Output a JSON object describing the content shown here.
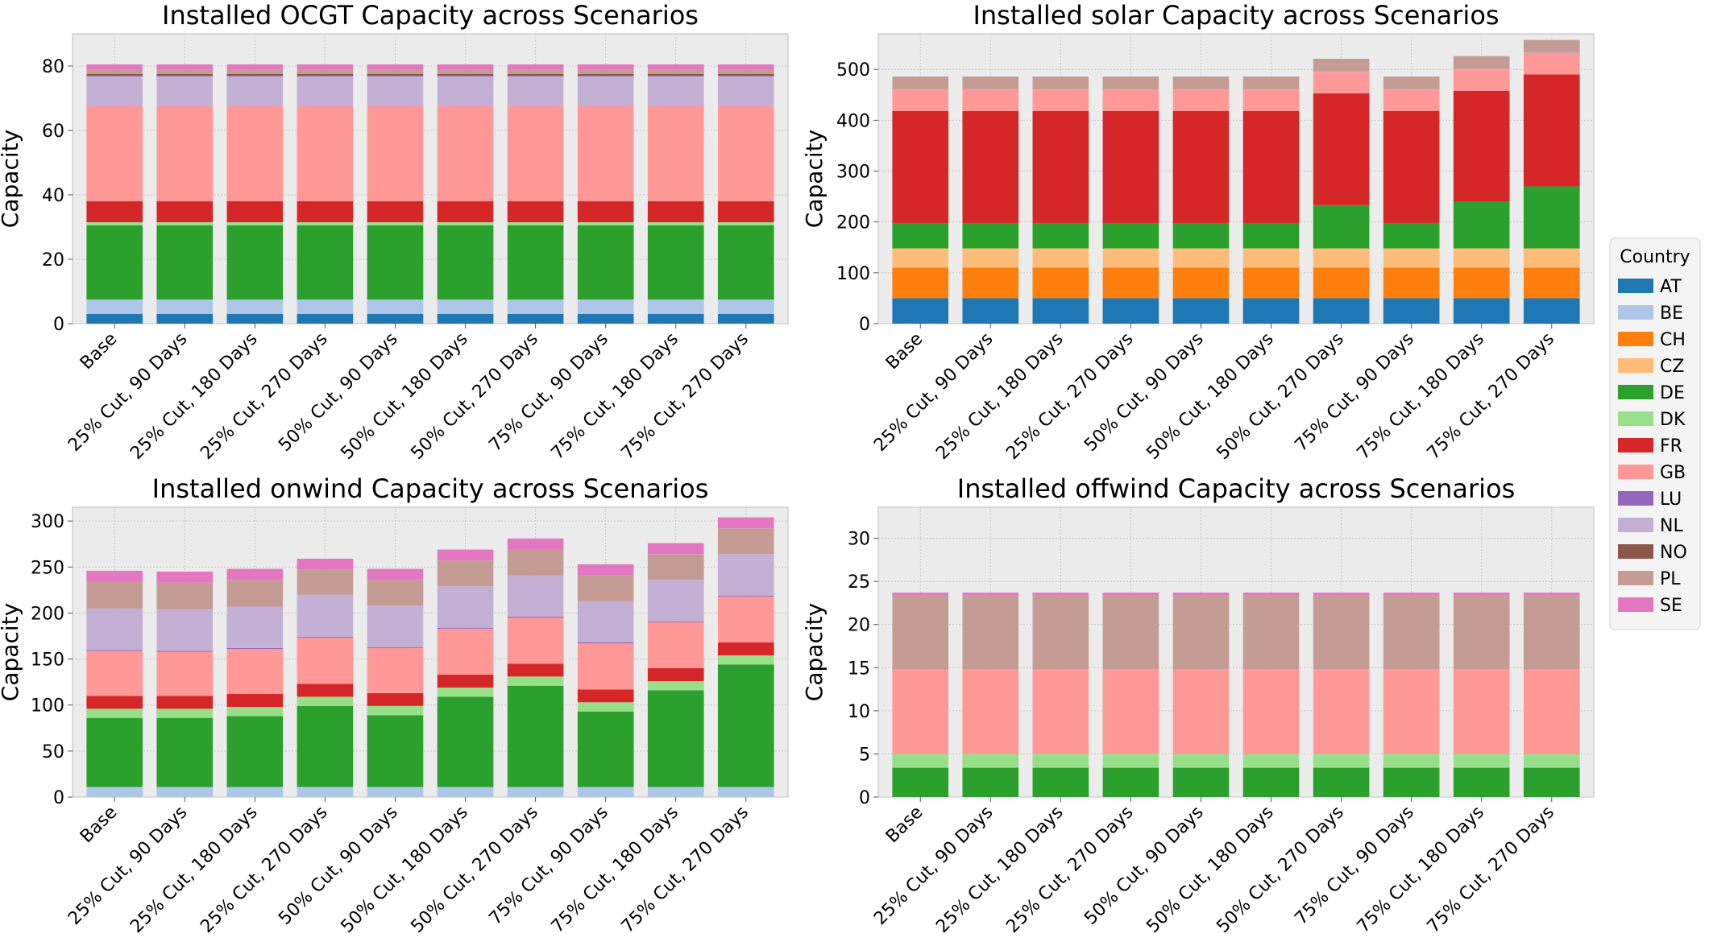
{
  "colors": {
    "AT": "#1f77b4",
    "BE": "#aec7e8",
    "CH": "#ff7f0e",
    "CZ": "#ffbb78",
    "DE": "#2ca02c",
    "DK": "#98df8a",
    "FR": "#d62728",
    "GB": "#ff9896",
    "LU": "#9467bd",
    "NL": "#c5b0d5",
    "NO": "#8c564b",
    "PL": "#c49c94",
    "SE": "#e377c2",
    "axes_bg": "#ececec",
    "grid": "#c8c8c8",
    "spine": "#bcbcbc"
  },
  "legend": {
    "title": "Country",
    "entries": [
      "AT",
      "BE",
      "CH",
      "CZ",
      "DE",
      "DK",
      "FR",
      "GB",
      "LU",
      "NL",
      "NO",
      "PL",
      "SE"
    ],
    "placement": "center-right"
  },
  "chart_data": [
    {
      "type": "bar",
      "stacked": true,
      "title": "Installed OCGT Capacity across Scenarios",
      "xlabel": "",
      "ylabel": "Capacity",
      "ylim": [
        0,
        90
      ],
      "yticks": [
        0,
        20,
        40,
        60,
        80
      ],
      "grid": true,
      "categories": [
        "Base",
        "25% Cut, 90 Days",
        "25% Cut, 180 Days",
        "25% Cut, 270 Days",
        "50% Cut, 90 Days",
        "50% Cut, 180 Days",
        "50% Cut, 270 Days",
        "75% Cut, 90 Days",
        "75% Cut, 180 Days",
        "75% Cut, 270 Days"
      ],
      "series": [
        {
          "name": "AT",
          "values": [
            3,
            3,
            3,
            3,
            3,
            3,
            3,
            3,
            3,
            3
          ]
        },
        {
          "name": "BE",
          "values": [
            4.5,
            4.5,
            4.5,
            4.5,
            4.5,
            4.5,
            4.5,
            4.5,
            4.5,
            4.5
          ]
        },
        {
          "name": "DE",
          "values": [
            23,
            23,
            23,
            23,
            23,
            23,
            23,
            23,
            23,
            23
          ]
        },
        {
          "name": "DK",
          "values": [
            1,
            1,
            1,
            1,
            1,
            1,
            1,
            1,
            1,
            1
          ]
        },
        {
          "name": "FR",
          "values": [
            6.5,
            6.5,
            6.5,
            6.5,
            6.5,
            6.5,
            6.5,
            6.5,
            6.5,
            6.5
          ]
        },
        {
          "name": "GB",
          "values": [
            29.5,
            29.5,
            29.5,
            29.5,
            29.5,
            29.5,
            29.5,
            29.5,
            29.5,
            29.5
          ]
        },
        {
          "name": "NL",
          "values": [
            9.3,
            9.3,
            9.3,
            9.3,
            9.3,
            9.3,
            9.3,
            9.3,
            9.3,
            9.3
          ]
        },
        {
          "name": "LU",
          "values": [
            0.2,
            0.2,
            0.2,
            0.2,
            0.2,
            0.2,
            0.2,
            0.2,
            0.2,
            0.2
          ]
        },
        {
          "name": "NO",
          "values": [
            0.5,
            0.5,
            0.5,
            0.5,
            0.5,
            0.5,
            0.5,
            0.5,
            0.5,
            0.5
          ]
        },
        {
          "name": "PL",
          "values": [
            1.5,
            1.5,
            1.5,
            1.5,
            1.5,
            1.5,
            1.5,
            1.5,
            1.5,
            1.5
          ]
        },
        {
          "name": "SE",
          "values": [
            1.5,
            1.5,
            1.5,
            1.5,
            1.5,
            1.5,
            1.5,
            1.5,
            1.5,
            1.5
          ]
        }
      ]
    },
    {
      "type": "bar",
      "stacked": true,
      "title": "Installed solar Capacity across Scenarios",
      "xlabel": "",
      "ylabel": "Capacity",
      "ylim": [
        0,
        570
      ],
      "yticks": [
        0,
        100,
        200,
        300,
        400,
        500
      ],
      "grid": true,
      "categories": [
        "Base",
        "25% Cut, 90 Days",
        "25% Cut, 180 Days",
        "25% Cut, 270 Days",
        "50% Cut, 90 Days",
        "50% Cut, 180 Days",
        "50% Cut, 270 Days",
        "75% Cut, 90 Days",
        "75% Cut, 180 Days",
        "75% Cut, 270 Days"
      ],
      "series": [
        {
          "name": "AT",
          "values": [
            50,
            50,
            50,
            50,
            50,
            50,
            50,
            50,
            50,
            50
          ]
        },
        {
          "name": "CH",
          "values": [
            60,
            60,
            60,
            60,
            60,
            60,
            60,
            60,
            60,
            60
          ]
        },
        {
          "name": "CZ",
          "values": [
            38,
            38,
            38,
            38,
            38,
            38,
            38,
            38,
            38,
            38
          ]
        },
        {
          "name": "DE",
          "values": [
            50,
            50,
            50,
            50,
            50,
            50,
            85,
            50,
            92,
            122
          ]
        },
        {
          "name": "FR",
          "values": [
            220,
            220,
            220,
            220,
            220,
            220,
            220,
            220,
            218,
            220
          ]
        },
        {
          "name": "GB",
          "values": [
            42,
            42,
            42,
            42,
            42,
            42,
            42,
            42,
            42,
            42
          ]
        },
        {
          "name": "NL",
          "values": [
            1,
            1,
            1,
            1,
            1,
            1,
            1,
            1,
            1,
            1
          ]
        },
        {
          "name": "PL",
          "values": [
            25,
            25,
            25,
            25,
            25,
            25,
            25,
            25,
            25,
            25
          ]
        }
      ]
    },
    {
      "type": "bar",
      "stacked": true,
      "title": "Installed onwind Capacity across Scenarios",
      "xlabel": "",
      "ylabel": "Capacity",
      "ylim": [
        0,
        315
      ],
      "yticks": [
        0,
        50,
        100,
        150,
        200,
        250,
        300
      ],
      "grid": true,
      "categories": [
        "Base",
        "25% Cut, 90 Days",
        "25% Cut, 180 Days",
        "25% Cut, 270 Days",
        "50% Cut, 90 Days",
        "50% Cut, 180 Days",
        "50% Cut, 270 Days",
        "75% Cut, 90 Days",
        "75% Cut, 180 Days",
        "75% Cut, 270 Days"
      ],
      "series": [
        {
          "name": "BE",
          "values": [
            11,
            11,
            11,
            11,
            11,
            11,
            11,
            11,
            11,
            11
          ]
        },
        {
          "name": "DE",
          "values": [
            75,
            75,
            77,
            88,
            78,
            98,
            110,
            82,
            105,
            133
          ]
        },
        {
          "name": "DK",
          "values": [
            10,
            10,
            10,
            10,
            10,
            10,
            10,
            10,
            10,
            10
          ]
        },
        {
          "name": "FR",
          "values": [
            14,
            14,
            14,
            14,
            14,
            14,
            14,
            14,
            14,
            14
          ]
        },
        {
          "name": "GB",
          "values": [
            49,
            48,
            49,
            50,
            49,
            50,
            50,
            50,
            50,
            50
          ]
        },
        {
          "name": "LU",
          "values": [
            1,
            1,
            1,
            1,
            1,
            1,
            1,
            1,
            1,
            1
          ]
        },
        {
          "name": "NL",
          "values": [
            45,
            45,
            45,
            46,
            45,
            45,
            45,
            45,
            45,
            45
          ]
        },
        {
          "name": "PL",
          "values": [
            29,
            29,
            29,
            27,
            28,
            28,
            28,
            28,
            28,
            28
          ]
        },
        {
          "name": "SE",
          "values": [
            12,
            12,
            12,
            12,
            12,
            12,
            12,
            12,
            12,
            12
          ]
        }
      ]
    },
    {
      "type": "bar",
      "stacked": true,
      "title": "Installed offwind Capacity across Scenarios",
      "xlabel": "",
      "ylabel": "Capacity",
      "ylim": [
        0,
        33.6
      ],
      "yticks": [
        0,
        5,
        10,
        15,
        20,
        25,
        30
      ],
      "grid": true,
      "categories": [
        "Base",
        "25% Cut, 90 Days",
        "25% Cut, 180 Days",
        "25% Cut, 270 Days",
        "50% Cut, 90 Days",
        "50% Cut, 180 Days",
        "50% Cut, 270 Days",
        "75% Cut, 90 Days",
        "75% Cut, 180 Days",
        "75% Cut, 270 Days"
      ],
      "series": [
        {
          "name": "DE",
          "values": [
            3.4,
            3.4,
            3.4,
            3.4,
            3.4,
            3.4,
            3.4,
            3.4,
            3.4,
            3.4
          ]
        },
        {
          "name": "DK",
          "values": [
            1.6,
            1.6,
            1.6,
            1.6,
            1.6,
            1.6,
            1.6,
            1.6,
            1.6,
            1.6
          ]
        },
        {
          "name": "GB",
          "values": [
            9.8,
            9.8,
            9.8,
            9.8,
            9.8,
            9.8,
            9.8,
            9.8,
            9.8,
            9.8
          ]
        },
        {
          "name": "PL",
          "values": [
            8.6,
            8.6,
            8.6,
            8.6,
            8.6,
            8.6,
            8.6,
            8.6,
            8.6,
            8.6
          ]
        },
        {
          "name": "SE",
          "values": [
            0.3,
            0.3,
            0.3,
            0.3,
            0.3,
            0.3,
            0.3,
            0.3,
            0.3,
            0.3
          ]
        }
      ]
    }
  ]
}
